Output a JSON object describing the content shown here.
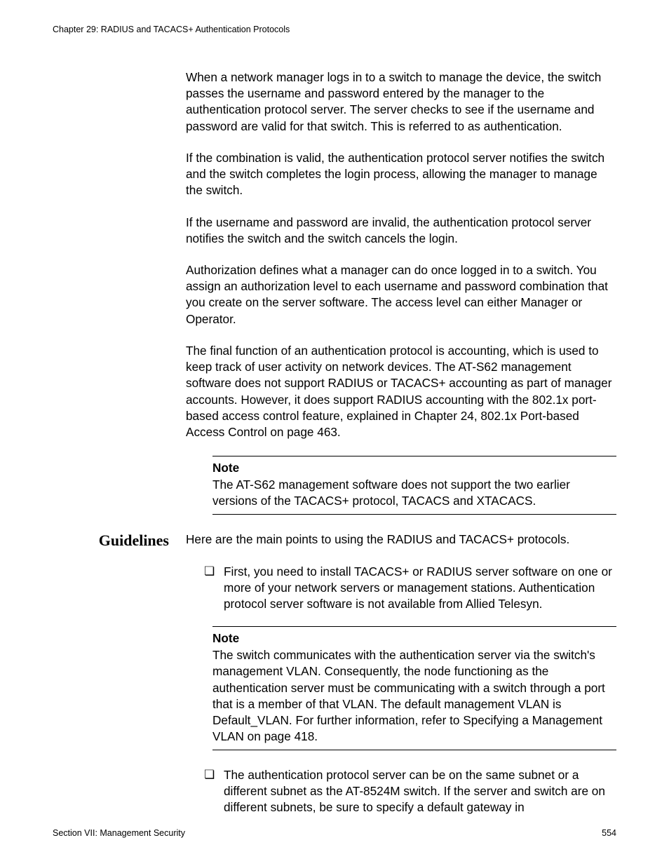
{
  "header": {
    "chapter": "Chapter 29: RADIUS and TACACS+ Authentication Protocols"
  },
  "paragraphs": {
    "p1": "When a network manager logs in to a switch to manage the device, the switch passes the username and password entered by the manager to the authentication protocol server. The server checks to see if the username and password are valid for that switch. This is referred to as authentication.",
    "p2": "If the combination is valid, the authentication protocol server notifies the switch and the switch completes the login process, allowing the manager to manage the switch.",
    "p3": "If the username and password are invalid, the authentication protocol server notifies the switch and the switch cancels the login.",
    "p4": "Authorization defines what a manager can do once logged in to a switch. You assign an authorization level to each username and password combination that you create on the server software. The access level can either Manager or Operator.",
    "p5": "The final function of an authentication protocol is accounting, which is used to keep track of user activity on network devices. The AT-S62 management software does not support RADIUS or TACACS+ accounting as part of manager accounts. However, it does support RADIUS accounting with the 802.1x port-based access control feature, explained in Chapter 24, 802.1x Port-based Access Control on page 463."
  },
  "note1": {
    "label": "Note",
    "text": "The AT-S62 management software does not support the two earlier versions of the TACACS+ protocol, TACACS and XTACACS."
  },
  "guidelines": {
    "heading": "Guidelines",
    "intro": "Here are the main points to using the RADIUS and TACACS+ protocols.",
    "bullet1": "First, you need to install TACACS+ or RADIUS server software on one or more of your network servers or management stations. Authentication protocol server software is not available from Allied Telesyn.",
    "bullet2": "The authentication protocol server can be on the same subnet or a different subnet as the AT-8524M switch. If the server and switch are on different subnets, be sure to specify a default gateway in"
  },
  "note2": {
    "label": "Note",
    "text": "The switch communicates with the authentication server via the switch's management VLAN. Consequently, the node functioning as the authentication server must be communicating with a switch through a port that is a member of that VLAN. The default management VLAN is Default_VLAN. For further information, refer to Specifying a Management VLAN on page 418."
  },
  "footer": {
    "section": "Section VII: Management Security",
    "page": "554"
  },
  "glyphs": {
    "bullet": "❏"
  }
}
